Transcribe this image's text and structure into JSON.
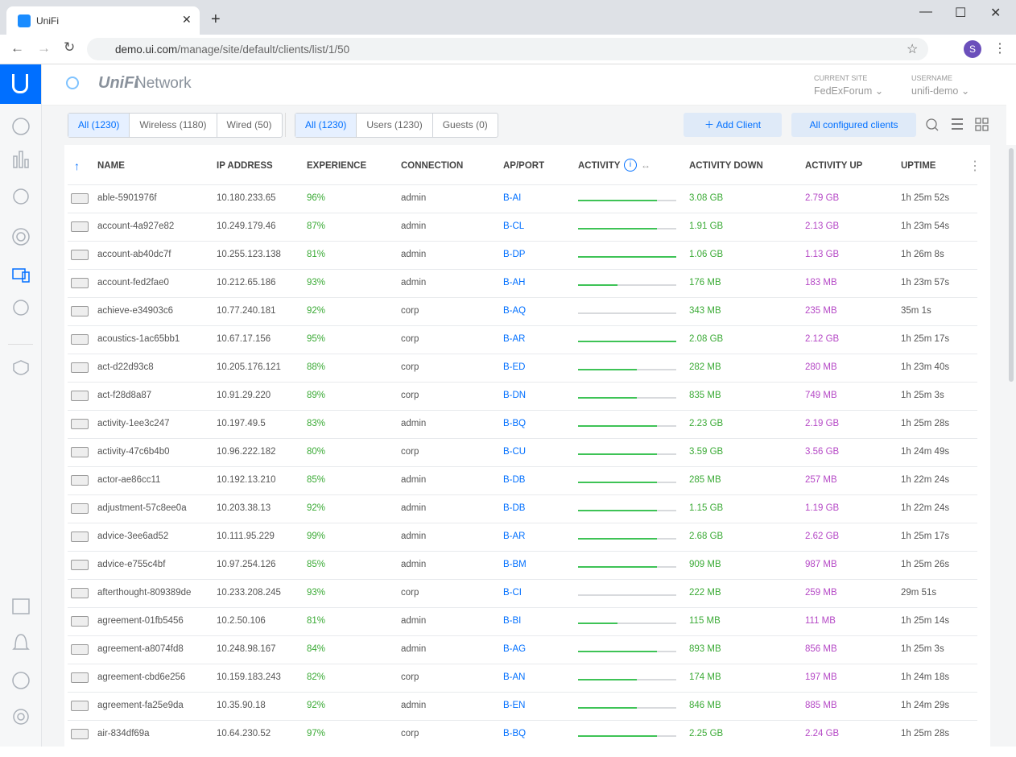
{
  "browser": {
    "tab_title": "UniFi",
    "url_host": "demo.ui.com",
    "url_path": "/manage/site/default/clients/list/1/50",
    "avatar": "S"
  },
  "app": {
    "brand_logo": "UniFi",
    "brand_name": "Network",
    "current_site_label": "CURRENT SITE",
    "current_site": "FedExForum",
    "username_label": "USERNAME",
    "username": "unifi-demo"
  },
  "filters": {
    "type_group": [
      "All (1230)",
      "Wireless (1180)",
      "Wired (50)"
    ],
    "user_group": [
      "All (1230)",
      "Users (1230)",
      "Guests (0)"
    ],
    "add_client": "Add Client",
    "configured": "All configured clients"
  },
  "table": {
    "columns": [
      "NAME",
      "IP ADDRESS",
      "EXPERIENCE",
      "CONNECTION",
      "AP/PORT",
      "ACTIVITY",
      "ACTIVITY DOWN",
      "ACTIVITY UP",
      "UPTIME"
    ],
    "rows": [
      [
        "able-5901976f",
        "10.180.233.65",
        "96%",
        "admin",
        "B-AI",
        "3.08 GB",
        "2.79 GB",
        "1h 25m 52s"
      ],
      [
        "account-4a927e82",
        "10.249.179.46",
        "87%",
        "admin",
        "B-CL",
        "1.91 GB",
        "2.13 GB",
        "1h 23m 54s"
      ],
      [
        "account-ab40dc7f",
        "10.255.123.138",
        "81%",
        "admin",
        "B-DP",
        "1.06 GB",
        "1.13 GB",
        "1h 26m 8s"
      ],
      [
        "account-fed2fae0",
        "10.212.65.186",
        "93%",
        "admin",
        "B-AH",
        "176 MB",
        "183 MB",
        "1h 23m 57s"
      ],
      [
        "achieve-e34903c6",
        "10.77.240.181",
        "92%",
        "corp",
        "B-AQ",
        "343 MB",
        "235 MB",
        "35m 1s"
      ],
      [
        "acoustics-1ac65bb1",
        "10.67.17.156",
        "95%",
        "corp",
        "B-AR",
        "2.08 GB",
        "2.12 GB",
        "1h 25m 17s"
      ],
      [
        "act-d22d93c8",
        "10.205.176.121",
        "88%",
        "corp",
        "B-ED",
        "282 MB",
        "280 MB",
        "1h 23m 40s"
      ],
      [
        "act-f28d8a87",
        "10.91.29.220",
        "89%",
        "corp",
        "B-DN",
        "835 MB",
        "749 MB",
        "1h 25m 3s"
      ],
      [
        "activity-1ee3c247",
        "10.197.49.5",
        "83%",
        "admin",
        "B-BQ",
        "2.23 GB",
        "2.19 GB",
        "1h 25m 28s"
      ],
      [
        "activity-47c6b4b0",
        "10.96.222.182",
        "80%",
        "corp",
        "B-CU",
        "3.59 GB",
        "3.56 GB",
        "1h 24m 49s"
      ],
      [
        "actor-ae86cc11",
        "10.192.13.210",
        "85%",
        "admin",
        "B-DB",
        "285 MB",
        "257 MB",
        "1h 22m 24s"
      ],
      [
        "adjustment-57c8ee0a",
        "10.203.38.13",
        "92%",
        "admin",
        "B-DB",
        "1.15 GB",
        "1.19 GB",
        "1h 22m 24s"
      ],
      [
        "advice-3ee6ad52",
        "10.111.95.229",
        "99%",
        "admin",
        "B-AR",
        "2.68 GB",
        "2.62 GB",
        "1h 25m 17s"
      ],
      [
        "advice-e755c4bf",
        "10.97.254.126",
        "85%",
        "admin",
        "B-BM",
        "909 MB",
        "987 MB",
        "1h 25m 26s"
      ],
      [
        "afterthought-809389de",
        "10.233.208.245",
        "93%",
        "corp",
        "B-CI",
        "222 MB",
        "259 MB",
        "29m 51s"
      ],
      [
        "agreement-01fb5456",
        "10.2.50.106",
        "81%",
        "admin",
        "B-BI",
        "115 MB",
        "111 MB",
        "1h 25m 14s"
      ],
      [
        "agreement-a8074fd8",
        "10.248.98.167",
        "84%",
        "admin",
        "B-AG",
        "893 MB",
        "856 MB",
        "1h 25m 3s"
      ],
      [
        "agreement-cbd6e256",
        "10.159.183.243",
        "82%",
        "corp",
        "B-AN",
        "174 MB",
        "197 MB",
        "1h 24m 18s"
      ],
      [
        "agreement-fa25e9da",
        "10.35.90.18",
        "92%",
        "admin",
        "B-EN",
        "846 MB",
        "885 MB",
        "1h 24m 29s"
      ],
      [
        "air-834df69a",
        "10.64.230.52",
        "97%",
        "corp",
        "B-BQ",
        "2.25 GB",
        "2.24 GB",
        "1h 25m 28s"
      ]
    ],
    "activity": [
      80,
      80,
      100,
      40,
      0,
      100,
      60,
      60,
      80,
      80,
      80,
      80,
      80,
      80,
      0,
      40,
      80,
      60,
      60,
      80
    ]
  }
}
